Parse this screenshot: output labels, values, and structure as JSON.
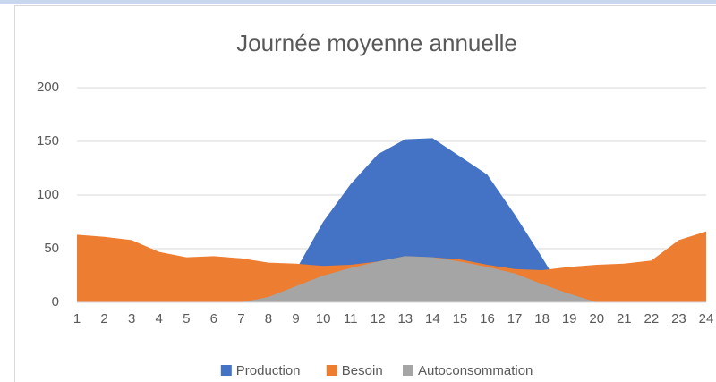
{
  "chart_data": {
    "type": "area",
    "title": "Journée moyenne annuelle",
    "x": [
      1,
      2,
      3,
      4,
      5,
      6,
      7,
      8,
      9,
      10,
      11,
      12,
      13,
      14,
      15,
      16,
      17,
      18,
      19,
      20,
      21,
      22,
      23,
      24
    ],
    "xlim": [
      1,
      24
    ],
    "xticks": [
      1,
      2,
      3,
      4,
      5,
      6,
      7,
      8,
      9,
      10,
      11,
      12,
      13,
      14,
      15,
      16,
      17,
      18,
      19,
      20,
      21,
      22,
      23,
      24
    ],
    "ylim": [
      0,
      200
    ],
    "yticks": [
      0,
      50,
      100,
      150,
      200
    ],
    "grid": true,
    "legend": "bottom",
    "series": [
      {
        "name": "Production",
        "color": "#4472c4",
        "values": [
          0,
          0,
          0,
          0,
          0,
          0,
          0,
          5,
          30,
          75,
          110,
          138,
          152,
          153,
          136,
          119,
          82,
          42,
          0,
          0,
          0,
          0,
          0,
          0
        ]
      },
      {
        "name": "Besoin",
        "color": "#ed7d31",
        "values": [
          63,
          61,
          58,
          47,
          42,
          43,
          41,
          37,
          36,
          34,
          35,
          38,
          43,
          42,
          40,
          35,
          31,
          30,
          33,
          35,
          36,
          39,
          58,
          66
        ]
      },
      {
        "name": "Autoconsommation",
        "color": "#a5a5a5",
        "values": [
          0,
          0,
          0,
          0,
          0,
          0,
          0,
          5,
          15,
          25,
          32,
          38,
          43,
          42,
          38,
          33,
          27,
          17,
          8,
          0,
          0,
          0,
          0,
          0
        ]
      }
    ]
  }
}
